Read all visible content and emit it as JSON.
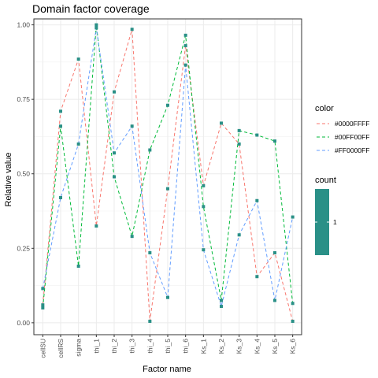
{
  "chart_data": {
    "type": "line",
    "title": "Domain factor coverage",
    "xlabel": "Factor name",
    "ylabel": "Relative value",
    "ylim": [
      -0.04,
      1.02
    ],
    "y_ticks": [
      0.0,
      0.25,
      0.5,
      0.75,
      1.0
    ],
    "y_tick_labels": [
      "0.00",
      "0.25",
      "0.50",
      "0.75",
      "1.00"
    ],
    "grid": true,
    "categories": [
      "cellSU",
      "cellRS",
      "sigma",
      "thi_1",
      "thi_2",
      "thi_3",
      "thi_4",
      "thi_5",
      "thi_6",
      "Ks_1",
      "Ks_2",
      "Ks_3",
      "Ks_4",
      "Ks_5",
      "Ks_6"
    ],
    "series": [
      {
        "name": "#0000FFFF",
        "color": "#F8766D",
        "values": [
          0.06,
          0.71,
          0.885,
          0.325,
          0.775,
          0.985,
          0.005,
          0.45,
          0.93,
          0.46,
          0.67,
          0.6,
          0.155,
          0.235,
          0.005
        ]
      },
      {
        "name": "#00FF00FF",
        "color": "#00BA38",
        "values": [
          0.05,
          0.66,
          0.19,
          1.0,
          0.49,
          0.29,
          0.58,
          0.73,
          0.965,
          0.39,
          0.075,
          0.645,
          0.63,
          0.61,
          0.065
        ]
      },
      {
        "name": "#FF0000FF",
        "color": "#619CFF",
        "values": [
          0.115,
          0.42,
          0.6,
          0.99,
          0.57,
          0.66,
          0.235,
          0.085,
          0.865,
          0.245,
          0.055,
          0.295,
          0.41,
          0.075,
          0.355
        ]
      }
    ],
    "point_color": "#2A9087",
    "legend": {
      "placement": "right",
      "color_title": "color",
      "count_title": "count",
      "count_label": "1",
      "count_fill": "#2A9087"
    }
  }
}
